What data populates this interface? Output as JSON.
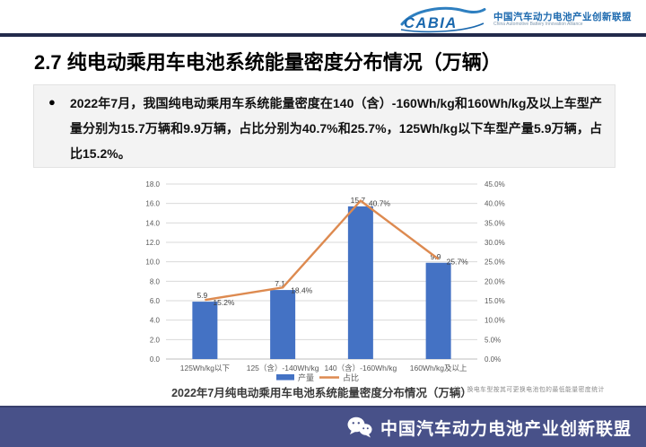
{
  "header": {
    "logo_text": "CABIA",
    "org_cn": "中国汽车动力电池产业创新联盟",
    "org_en": "China Automotive Battery Innovation Alliance"
  },
  "slide": {
    "title": "2.7 纯电动乘用车电池系统能量密度分布情况（万辆）",
    "bullet_marker": "●",
    "bullet": "2022年7月，我国纯电动乘用车系统能量密度在140（含）-160Wh/kg和160Wh/kg及以上车型产量分别为15.7万辆和9.9万辆，占比分别为40.7%和25.7%，125Wh/kg以下车型产量5.9万辆，占比15.2%。"
  },
  "chart_data": {
    "type": "bar",
    "subtype": "bar+line-combo",
    "title": "2022年7月纯电动乘用车电池系统能量密度分布情况（万辆）",
    "note": "注：换电车型按其可更换电池包的最低能量密度统计",
    "categories": [
      "125Wh/kg以下",
      "125（含）-140Wh/kg",
      "140（含）-160Wh/kg",
      "160Wh/kg及以上"
    ],
    "series": [
      {
        "name": "产量",
        "type": "bar",
        "axis": "left",
        "values": [
          5.9,
          7.1,
          15.7,
          9.9
        ],
        "labels": [
          "5.9",
          "7.1",
          "15.7",
          "9.9"
        ],
        "color": "#4472c4"
      },
      {
        "name": "占比",
        "type": "line",
        "axis": "right",
        "values": [
          15.2,
          18.4,
          40.7,
          25.7
        ],
        "labels": [
          "15.2%",
          "18.4%",
          "40.7%",
          "25.7%"
        ],
        "color": "#dd8a50"
      }
    ],
    "left_axis": {
      "min": 0,
      "max": 18,
      "step": 2,
      "tick_suffix": ""
    },
    "right_axis": {
      "min": 0,
      "max": 45,
      "step": 5,
      "tick_suffix": "%"
    },
    "grid": true,
    "legend_position": "bottom",
    "tick_color": "#595959",
    "grid_color": "#d9d9d9",
    "axis_line_color": "#bfbfbf",
    "label_color": "#404040"
  },
  "footer": {
    "org": "中国汽车动力电池产业创新联盟"
  },
  "colors": {
    "bar": "#4472c4",
    "line": "#dd8a50",
    "footer_bg": "#485189",
    "header_rule": "#232b4c",
    "logo_blue": "#1a68ae"
  }
}
